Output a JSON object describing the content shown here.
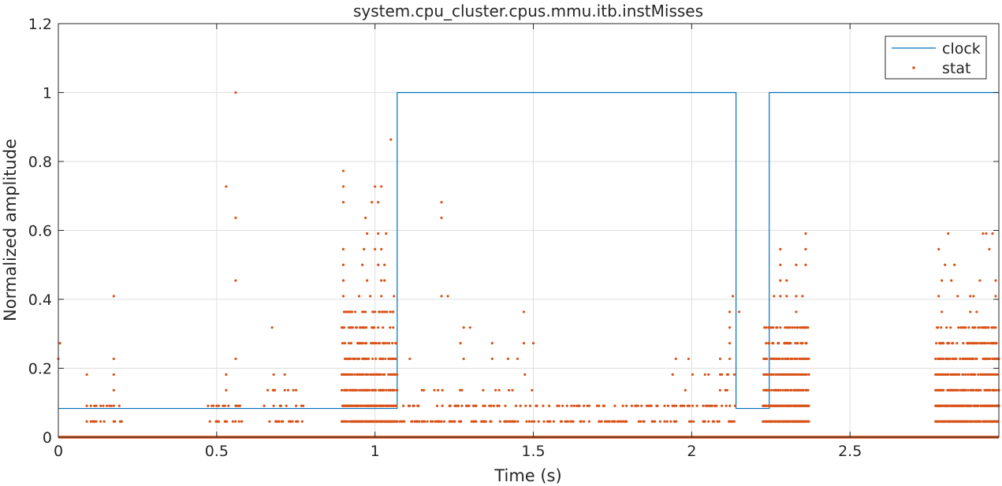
{
  "chart_data": {
    "type": "line",
    "title": "system.cpu_cluster.cpus.mmu.itb.instMisses",
    "xlabel": "Time (s)",
    "ylabel": "Normalized amplitude",
    "xlim": [
      0,
      2.97
    ],
    "ylim": [
      0,
      1.2
    ],
    "xticks": [
      0,
      0.5,
      1,
      1.5,
      2,
      2.5
    ],
    "xtick_labels": [
      "0",
      "0.5",
      "1",
      "1.5",
      "2",
      "2.5"
    ],
    "yticks": [
      0,
      0.2,
      0.4,
      0.6,
      0.8,
      1,
      1.2
    ],
    "ytick_labels": [
      "0",
      "0.2",
      "0.4",
      "0.6",
      "0.8",
      "1",
      "1.2"
    ],
    "grid": true,
    "legend_position": "top-right",
    "colors": {
      "clock": "#0072BD",
      "stat": "#D95319"
    },
    "series": [
      {
        "name": "clock",
        "style": "line",
        "x": [
          0,
          1.07,
          1.07,
          2.14,
          2.14,
          2.245,
          2.245,
          2.97
        ],
        "y": [
          0.0833,
          0.0833,
          1,
          1,
          0.0833,
          0.0833,
          1,
          1
        ]
      },
      {
        "name": "stat",
        "style": "markers",
        "baseline_y": 0,
        "levels": [
          0.0455,
          0.0909,
          0.1364,
          0.1818,
          0.2273,
          0.2727,
          0.3182,
          0.3636,
          0.4091,
          0.4545,
          0.5,
          0.5455
        ],
        "dense_regions": [
          {
            "x_start": 0.895,
            "x_end": 1.07,
            "max_level": 0.3636
          },
          {
            "x_start": 2.225,
            "x_end": 2.37,
            "max_level": 0.3182
          },
          {
            "x_start": 2.77,
            "x_end": 2.97,
            "max_level": 0.3182
          }
        ],
        "sparse_regions": [
          {
            "x_start": 0.1,
            "x_end": 0.2,
            "max_level": 0.0909
          },
          {
            "x_start": 0.47,
            "x_end": 0.58,
            "max_level": 0.0909
          },
          {
            "x_start": 0.65,
            "x_end": 0.78,
            "max_level": 0.1364
          },
          {
            "x_start": 1.07,
            "x_end": 1.35,
            "max_level": 0.1364
          },
          {
            "x_start": 1.35,
            "x_end": 1.5,
            "max_level": 0.1818
          },
          {
            "x_start": 1.5,
            "x_end": 2.0,
            "max_level": 0.0909
          },
          {
            "x_start": 2.0,
            "x_end": 2.14,
            "max_level": 0.1818
          }
        ],
        "points": [
          [
            0.0,
            0.2273
          ],
          [
            0.005,
            0.2727
          ],
          [
            0.09,
            0.0455
          ],
          [
            0.09,
            0.0909
          ],
          [
            0.09,
            0.1818
          ],
          [
            0.175,
            0.0455
          ],
          [
            0.175,
            0.0909
          ],
          [
            0.175,
            0.1364
          ],
          [
            0.175,
            0.1818
          ],
          [
            0.175,
            0.2273
          ],
          [
            0.175,
            0.4091
          ],
          [
            0.2,
            0.0455
          ],
          [
            0.485,
            0.0909
          ],
          [
            0.5,
            0.0455
          ],
          [
            0.5,
            0.0909
          ],
          [
            0.52,
            0.0909
          ],
          [
            0.53,
            0.0455
          ],
          [
            0.53,
            0.1364
          ],
          [
            0.53,
            0.1818
          ],
          [
            0.53,
            0.7273
          ],
          [
            0.56,
            0.0909
          ],
          [
            0.56,
            0.2273
          ],
          [
            0.56,
            0.4545
          ],
          [
            0.56,
            0.6364
          ],
          [
            0.56,
            1.0
          ],
          [
            0.675,
            0.3182
          ],
          [
            0.68,
            0.0909
          ],
          [
            0.68,
            0.1364
          ],
          [
            0.68,
            0.1818
          ],
          [
            0.715,
            0.1364
          ],
          [
            0.715,
            0.1818
          ],
          [
            0.77,
            0.0455
          ],
          [
            0.9,
            0.4091
          ],
          [
            0.9,
            0.4545
          ],
          [
            0.9,
            0.5
          ],
          [
            0.9,
            0.5455
          ],
          [
            0.9,
            0.6818
          ],
          [
            0.9,
            0.7273
          ],
          [
            0.9,
            0.7727
          ],
          [
            0.95,
            0.4091
          ],
          [
            0.96,
            0.5
          ],
          [
            0.965,
            0.5455
          ],
          [
            0.97,
            0.6364
          ],
          [
            0.975,
            0.4545
          ],
          [
            0.975,
            0.5909
          ],
          [
            0.985,
            0.4091
          ],
          [
            0.99,
            0.6818
          ],
          [
            1.0,
            0.5455
          ],
          [
            1.0,
            0.7273
          ],
          [
            1.01,
            0.5
          ],
          [
            1.01,
            0.5909
          ],
          [
            1.01,
            0.6818
          ],
          [
            1.02,
            0.4091
          ],
          [
            1.02,
            0.4545
          ],
          [
            1.02,
            0.5455
          ],
          [
            1.02,
            0.7273
          ],
          [
            1.03,
            0.4545
          ],
          [
            1.03,
            0.5
          ],
          [
            1.035,
            0.5909
          ],
          [
            1.05,
            0.8636
          ],
          [
            1.06,
            0.4091
          ],
          [
            1.11,
            0.2273
          ],
          [
            1.21,
            0.6364
          ],
          [
            1.21,
            0.6818
          ],
          [
            1.21,
            0.4091
          ],
          [
            1.23,
            0.4091
          ],
          [
            1.27,
            0.2727
          ],
          [
            1.28,
            0.2273
          ],
          [
            1.28,
            0.3182
          ],
          [
            1.3,
            0.3182
          ],
          [
            1.37,
            0.2273
          ],
          [
            1.37,
            0.2727
          ],
          [
            1.42,
            0.2273
          ],
          [
            1.45,
            0.2273
          ],
          [
            1.47,
            0.2727
          ],
          [
            1.47,
            0.3636
          ],
          [
            1.5,
            0.2727
          ],
          [
            1.55,
            0.0909
          ],
          [
            1.94,
            0.1818
          ],
          [
            1.95,
            0.2273
          ],
          [
            1.98,
            0.1364
          ],
          [
            1.99,
            0.2273
          ],
          [
            2.09,
            0.1818
          ],
          [
            2.09,
            0.2273
          ],
          [
            2.12,
            0.2273
          ],
          [
            2.12,
            0.2727
          ],
          [
            2.12,
            0.3182
          ],
          [
            2.12,
            0.3636
          ],
          [
            2.13,
            0.4091
          ],
          [
            2.15,
            0.3636
          ],
          [
            2.26,
            0.4091
          ],
          [
            2.28,
            0.4091
          ],
          [
            2.28,
            0.4545
          ],
          [
            2.28,
            0.5
          ],
          [
            2.28,
            0.5455
          ],
          [
            2.3,
            0.4091
          ],
          [
            2.3,
            0.4545
          ],
          [
            2.33,
            0.3636
          ],
          [
            2.33,
            0.4091
          ],
          [
            2.33,
            0.5
          ],
          [
            2.35,
            0.4091
          ],
          [
            2.36,
            0.5
          ],
          [
            2.36,
            0.5455
          ],
          [
            2.36,
            0.5909
          ],
          [
            2.78,
            0.4091
          ],
          [
            2.78,
            0.5455
          ],
          [
            2.79,
            0.3636
          ],
          [
            2.79,
            0.4545
          ],
          [
            2.8,
            0.5
          ],
          [
            2.81,
            0.5909
          ],
          [
            2.82,
            0.4545
          ],
          [
            2.83,
            0.5
          ],
          [
            2.84,
            0.4091
          ],
          [
            2.88,
            0.3636
          ],
          [
            2.88,
            0.4091
          ],
          [
            2.89,
            0.4091
          ],
          [
            2.9,
            0.3636
          ],
          [
            2.91,
            0.4545
          ],
          [
            2.92,
            0.5909
          ],
          [
            2.93,
            0.5909
          ],
          [
            2.94,
            0.5455
          ],
          [
            2.95,
            0.5909
          ],
          [
            2.96,
            0.4545
          ],
          [
            2.96,
            0.4091
          ]
        ]
      }
    ]
  }
}
